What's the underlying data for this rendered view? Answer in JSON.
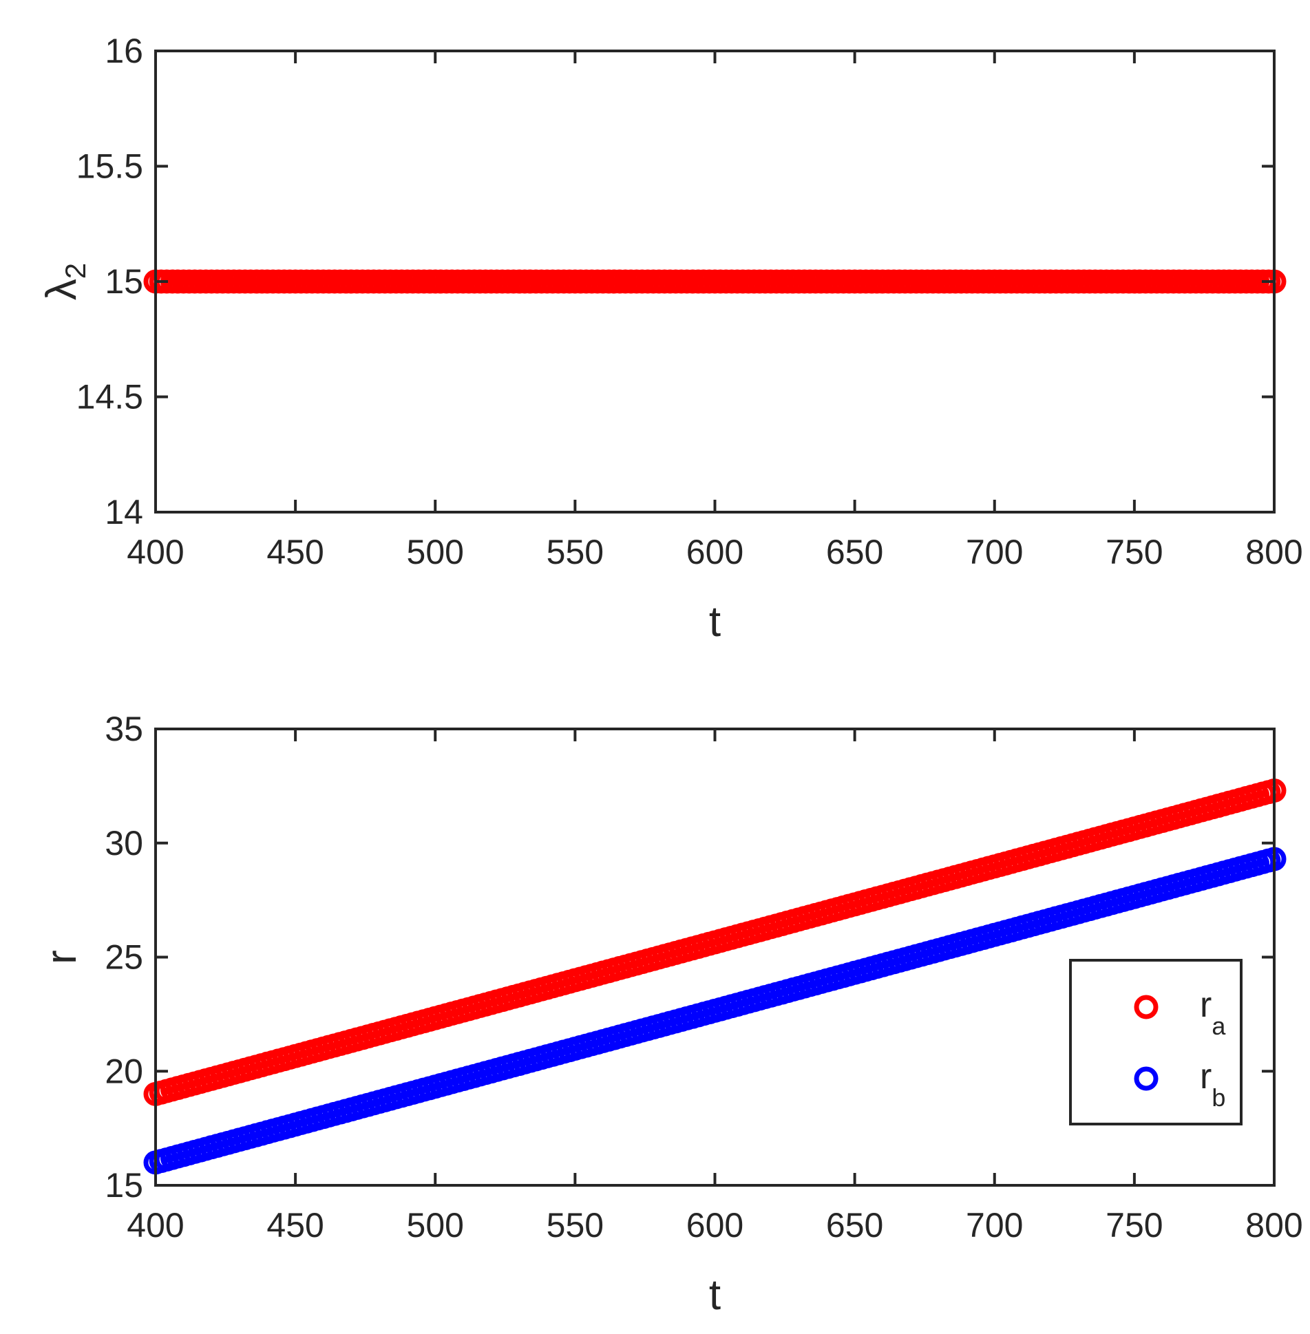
{
  "chart_data": [
    {
      "type": "scatter",
      "xlabel": "t",
      "ylabel": "λ",
      "ylabel_subscript": "2",
      "xlim": [
        400,
        800
      ],
      "ylim": [
        14,
        16
      ],
      "xticks": [
        "400",
        "450",
        "500",
        "550",
        "600",
        "650",
        "700",
        "750",
        "800"
      ],
      "yticks": [
        "14",
        "14.5",
        "15",
        "15.5",
        "16"
      ],
      "grid": false,
      "series": [
        {
          "color": "#ff0000",
          "marker": "circle",
          "x_start": 400,
          "x_end": 800,
          "x_step": 2,
          "y_start": 15,
          "y_end": 15
        }
      ]
    },
    {
      "type": "scatter",
      "xlabel": "t",
      "ylabel": "r",
      "xlim": [
        400,
        800
      ],
      "ylim": [
        15,
        35
      ],
      "xticks": [
        "400",
        "450",
        "500",
        "550",
        "600",
        "650",
        "700",
        "750",
        "800"
      ],
      "yticks": [
        "15",
        "20",
        "25",
        "30",
        "35"
      ],
      "grid": false,
      "legend_position": "right",
      "series": [
        {
          "name": "r",
          "subscript": "a",
          "color": "#ff0000",
          "marker": "circle",
          "x_start": 400,
          "x_end": 800,
          "x_step": 2,
          "y_start": 19.0,
          "y_end": 32.3
        },
        {
          "name": "r",
          "subscript": "b",
          "color": "#0000ff",
          "marker": "circle",
          "x_start": 400,
          "x_end": 800,
          "x_step": 2,
          "y_start": 16.0,
          "y_end": 29.3
        }
      ]
    }
  ]
}
